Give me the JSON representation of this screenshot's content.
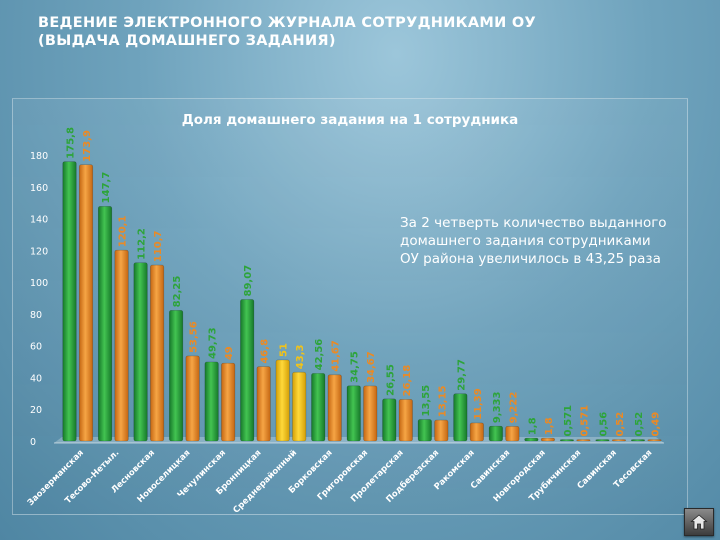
{
  "slide": {
    "title_line1": "ВЕДЕНИЕ ЭЛЕКТРОННОГО ЖУРНАЛА СОТРУДНИКАМИ ОУ",
    "title_line2": "(ВЫДАЧА ДОМАШНЕГО ЗАДАНИЯ)"
  },
  "note": "За 2 четверть количество выданного домашнего задания сотрудниками ОУ района увеличилось в 43,25 раза",
  "home_button": {
    "icon": "home-icon"
  },
  "chart_data": {
    "type": "bar",
    "title": "Доля домашнего задания на 1 сотрудника",
    "ylim": [
      0,
      180
    ],
    "yticks": [
      0,
      20,
      40,
      60,
      80,
      100,
      120,
      140,
      160,
      180
    ],
    "grid": false,
    "colors": {
      "first": "#2da43a",
      "second": "#ea8a25",
      "highlight": "#f2c318"
    },
    "categories": [
      "Заозерманская",
      "Тесово-Нетыл.",
      "Лесновская",
      "Новоселицкая",
      "Чечулинская",
      "Бронницкая",
      "Среднерайонный",
      "Борковская",
      "Григоровская",
      "Пролетарская",
      "Подберезская",
      "Ракомская",
      "Савинская",
      "Новгородская",
      "Трубичинская",
      "Савинская",
      "Тесовская"
    ],
    "series": [
      {
        "values": [
          175.8,
          147.7,
          112.2,
          82.25,
          49.73,
          89.07,
          51,
          42.56,
          34.75,
          26.55,
          13.55,
          29.77,
          9.333,
          1.8,
          0.571,
          0.56,
          0.52
        ],
        "labels": [
          "175,8",
          "147,7",
          "112,2",
          "82,25",
          "49,73",
          "89,07",
          "51",
          "42,56",
          "34,75",
          "26,55",
          "13,55",
          "29,77",
          "9,333",
          "1,8",
          "0,571",
          "0,56",
          "0,52"
        ]
      },
      {
        "values": [
          173.9,
          120.1,
          110.7,
          53.56,
          49,
          46.8,
          43.3,
          41.67,
          34.67,
          26.18,
          13.15,
          11.39,
          9.222,
          1.8,
          0.571,
          0.52,
          0.49
        ],
        "labels": [
          "173,9",
          "120,1",
          "110,7",
          "53,56",
          "49",
          "46,8",
          "43,3",
          "41,67",
          "34,67",
          "26,18",
          "13,15",
          "11,39",
          "9,222",
          "1,8",
          "0,571",
          "0,52",
          "0,49"
        ]
      }
    ],
    "highlight_category_index": 6
  }
}
